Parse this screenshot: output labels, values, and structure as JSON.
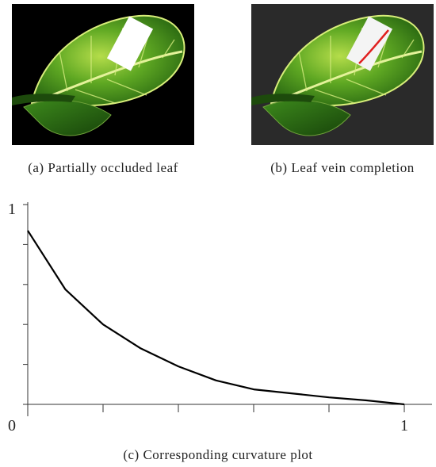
{
  "figures": [
    {
      "caption": "(a) Partially occluded leaf"
    },
    {
      "caption": "(b) Leaf vein completion"
    }
  ],
  "chart_data": {
    "type": "line",
    "caption": "(c) Corresponding curvature plot",
    "x": [
      0,
      0.1,
      0.2,
      0.3,
      0.4,
      0.5,
      0.6,
      0.7,
      0.8,
      0.9,
      1
    ],
    "series": [
      {
        "color": "#000000",
        "values": [
          0.87,
          0.575,
          0.4,
          0.28,
          0.19,
          0.12,
          0.075,
          0.055,
          0.035,
          0.02,
          0
        ]
      }
    ],
    "xlim": [
      0,
      1.07
    ],
    "ylim": [
      0,
      1
    ],
    "xticks": [
      {
        "value": 0,
        "label": null
      },
      {
        "value": 0.2,
        "label": null
      },
      {
        "value": 0.4,
        "label": null
      },
      {
        "value": 0.6,
        "label": null
      },
      {
        "value": 0.8,
        "label": null
      },
      1
    ],
    "yticks": [
      0,
      {
        "value": 0.2,
        "label": null
      },
      {
        "value": 0.4,
        "label": null
      },
      {
        "value": 0.6,
        "label": null
      },
      {
        "value": 0.8,
        "label": null
      },
      1
    ]
  }
}
